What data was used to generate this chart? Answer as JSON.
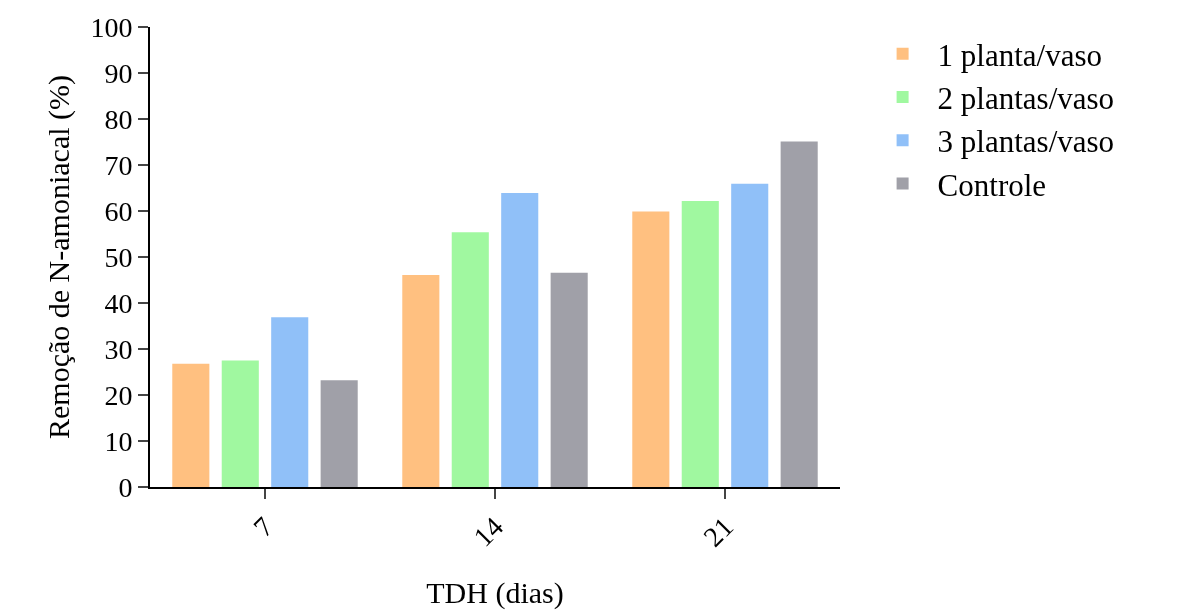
{
  "chart_data": {
    "type": "bar",
    "xlabel": "TDH (dias)",
    "ylabel": "Remoção de N-amoniacal (%)",
    "categories": [
      "7",
      "14",
      "21"
    ],
    "series": [
      {
        "name": "1 planta/vaso",
        "color": "#ffc080",
        "values": [
          26.8,
          46.1,
          59.9
        ]
      },
      {
        "name": "2 plantas/vaso",
        "color": "#a0f8a0",
        "values": [
          27.5,
          55.4,
          62.2
        ]
      },
      {
        "name": "3 plantas/vaso",
        "color": "#90c0f8",
        "values": [
          36.9,
          63.9,
          65.9
        ]
      },
      {
        "name": "Controle",
        "color": "#a0a0a8",
        "values": [
          23.2,
          46.6,
          75.1
        ]
      }
    ],
    "ylim": [
      0,
      100
    ],
    "yticks": [
      0,
      10,
      20,
      30,
      40,
      50,
      60,
      70,
      80,
      90,
      100
    ],
    "grid": false,
    "legend": "top right"
  }
}
